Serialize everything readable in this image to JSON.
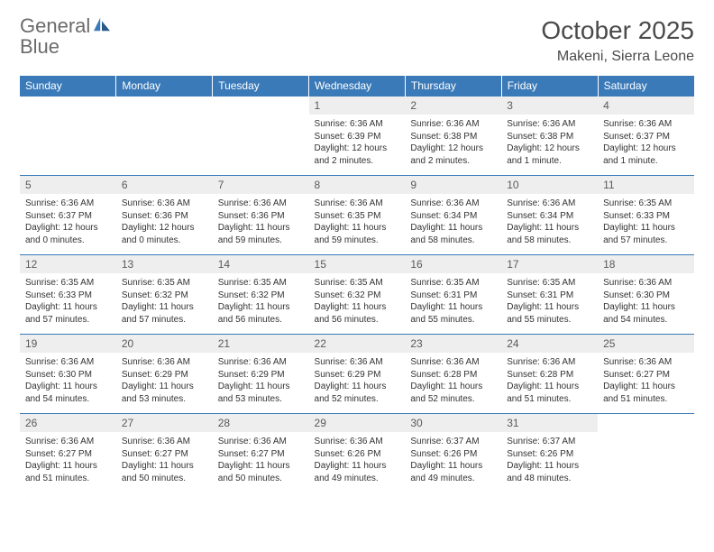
{
  "logo": {
    "word1": "General",
    "word2": "Blue"
  },
  "title": "October 2025",
  "location": "Makeni, Sierra Leone",
  "colors": {
    "header_bg": "#3a7ab8",
    "header_text": "#ffffff",
    "daynum_bg": "#eeeeee",
    "border": "#3a7ab8",
    "text": "#333333",
    "logo_gray": "#6b6b6b",
    "logo_blue": "#3a7ab8"
  },
  "day_headers": [
    "Sunday",
    "Monday",
    "Tuesday",
    "Wednesday",
    "Thursday",
    "Friday",
    "Saturday"
  ],
  "weeks": [
    [
      {
        "n": "",
        "lines": []
      },
      {
        "n": "",
        "lines": []
      },
      {
        "n": "",
        "lines": []
      },
      {
        "n": "1",
        "lines": [
          "Sunrise: 6:36 AM",
          "Sunset: 6:39 PM",
          "Daylight: 12 hours and 2 minutes."
        ]
      },
      {
        "n": "2",
        "lines": [
          "Sunrise: 6:36 AM",
          "Sunset: 6:38 PM",
          "Daylight: 12 hours and 2 minutes."
        ]
      },
      {
        "n": "3",
        "lines": [
          "Sunrise: 6:36 AM",
          "Sunset: 6:38 PM",
          "Daylight: 12 hours and 1 minute."
        ]
      },
      {
        "n": "4",
        "lines": [
          "Sunrise: 6:36 AM",
          "Sunset: 6:37 PM",
          "Daylight: 12 hours and 1 minute."
        ]
      }
    ],
    [
      {
        "n": "5",
        "lines": [
          "Sunrise: 6:36 AM",
          "Sunset: 6:37 PM",
          "Daylight: 12 hours and 0 minutes."
        ]
      },
      {
        "n": "6",
        "lines": [
          "Sunrise: 6:36 AM",
          "Sunset: 6:36 PM",
          "Daylight: 12 hours and 0 minutes."
        ]
      },
      {
        "n": "7",
        "lines": [
          "Sunrise: 6:36 AM",
          "Sunset: 6:36 PM",
          "Daylight: 11 hours and 59 minutes."
        ]
      },
      {
        "n": "8",
        "lines": [
          "Sunrise: 6:36 AM",
          "Sunset: 6:35 PM",
          "Daylight: 11 hours and 59 minutes."
        ]
      },
      {
        "n": "9",
        "lines": [
          "Sunrise: 6:36 AM",
          "Sunset: 6:34 PM",
          "Daylight: 11 hours and 58 minutes."
        ]
      },
      {
        "n": "10",
        "lines": [
          "Sunrise: 6:36 AM",
          "Sunset: 6:34 PM",
          "Daylight: 11 hours and 58 minutes."
        ]
      },
      {
        "n": "11",
        "lines": [
          "Sunrise: 6:35 AM",
          "Sunset: 6:33 PM",
          "Daylight: 11 hours and 57 minutes."
        ]
      }
    ],
    [
      {
        "n": "12",
        "lines": [
          "Sunrise: 6:35 AM",
          "Sunset: 6:33 PM",
          "Daylight: 11 hours and 57 minutes."
        ]
      },
      {
        "n": "13",
        "lines": [
          "Sunrise: 6:35 AM",
          "Sunset: 6:32 PM",
          "Daylight: 11 hours and 57 minutes."
        ]
      },
      {
        "n": "14",
        "lines": [
          "Sunrise: 6:35 AM",
          "Sunset: 6:32 PM",
          "Daylight: 11 hours and 56 minutes."
        ]
      },
      {
        "n": "15",
        "lines": [
          "Sunrise: 6:35 AM",
          "Sunset: 6:32 PM",
          "Daylight: 11 hours and 56 minutes."
        ]
      },
      {
        "n": "16",
        "lines": [
          "Sunrise: 6:35 AM",
          "Sunset: 6:31 PM",
          "Daylight: 11 hours and 55 minutes."
        ]
      },
      {
        "n": "17",
        "lines": [
          "Sunrise: 6:35 AM",
          "Sunset: 6:31 PM",
          "Daylight: 11 hours and 55 minutes."
        ]
      },
      {
        "n": "18",
        "lines": [
          "Sunrise: 6:36 AM",
          "Sunset: 6:30 PM",
          "Daylight: 11 hours and 54 minutes."
        ]
      }
    ],
    [
      {
        "n": "19",
        "lines": [
          "Sunrise: 6:36 AM",
          "Sunset: 6:30 PM",
          "Daylight: 11 hours and 54 minutes."
        ]
      },
      {
        "n": "20",
        "lines": [
          "Sunrise: 6:36 AM",
          "Sunset: 6:29 PM",
          "Daylight: 11 hours and 53 minutes."
        ]
      },
      {
        "n": "21",
        "lines": [
          "Sunrise: 6:36 AM",
          "Sunset: 6:29 PM",
          "Daylight: 11 hours and 53 minutes."
        ]
      },
      {
        "n": "22",
        "lines": [
          "Sunrise: 6:36 AM",
          "Sunset: 6:29 PM",
          "Daylight: 11 hours and 52 minutes."
        ]
      },
      {
        "n": "23",
        "lines": [
          "Sunrise: 6:36 AM",
          "Sunset: 6:28 PM",
          "Daylight: 11 hours and 52 minutes."
        ]
      },
      {
        "n": "24",
        "lines": [
          "Sunrise: 6:36 AM",
          "Sunset: 6:28 PM",
          "Daylight: 11 hours and 51 minutes."
        ]
      },
      {
        "n": "25",
        "lines": [
          "Sunrise: 6:36 AM",
          "Sunset: 6:27 PM",
          "Daylight: 11 hours and 51 minutes."
        ]
      }
    ],
    [
      {
        "n": "26",
        "lines": [
          "Sunrise: 6:36 AM",
          "Sunset: 6:27 PM",
          "Daylight: 11 hours and 51 minutes."
        ]
      },
      {
        "n": "27",
        "lines": [
          "Sunrise: 6:36 AM",
          "Sunset: 6:27 PM",
          "Daylight: 11 hours and 50 minutes."
        ]
      },
      {
        "n": "28",
        "lines": [
          "Sunrise: 6:36 AM",
          "Sunset: 6:27 PM",
          "Daylight: 11 hours and 50 minutes."
        ]
      },
      {
        "n": "29",
        "lines": [
          "Sunrise: 6:36 AM",
          "Sunset: 6:26 PM",
          "Daylight: 11 hours and 49 minutes."
        ]
      },
      {
        "n": "30",
        "lines": [
          "Sunrise: 6:37 AM",
          "Sunset: 6:26 PM",
          "Daylight: 11 hours and 49 minutes."
        ]
      },
      {
        "n": "31",
        "lines": [
          "Sunrise: 6:37 AM",
          "Sunset: 6:26 PM",
          "Daylight: 11 hours and 48 minutes."
        ]
      },
      {
        "n": "",
        "lines": []
      }
    ]
  ]
}
